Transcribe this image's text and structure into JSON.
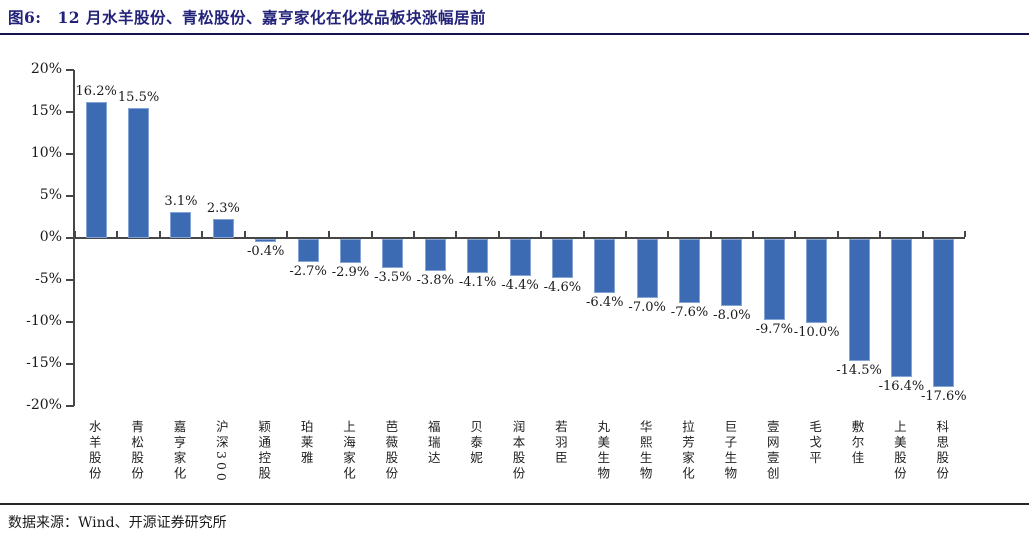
{
  "figure": {
    "label": "图6:",
    "title": "12 月水羊股份、青松股份、嘉亨家化在化妆品板块涨幅居前"
  },
  "footer": {
    "source": "数据来源：Wind、开源证券研究所"
  },
  "colors": {
    "bar": "#3C6BB3",
    "bar_border": "#85A4D6",
    "axis": "#474747",
    "text": "#1a1a1a",
    "title": "#23237A"
  },
  "chart_data": {
    "type": "bar",
    "title": "12 月水羊股份、青松股份、嘉亨家化在化妆品板块涨幅居前",
    "categories": [
      "水羊股份",
      "青松股份",
      "嘉亨家化",
      "沪深300",
      "颖通控股",
      "珀莱雅",
      "上海家化",
      "芭薇股份",
      "福瑞达",
      "贝泰妮",
      "润本股份",
      "若羽臣",
      "丸美生物",
      "华熙生物",
      "拉芳家化",
      "巨子生物",
      "壹网壹创",
      "毛戈平",
      "敷尔佳",
      "上美股份",
      "科思股份"
    ],
    "values": [
      16.2,
      15.5,
      3.1,
      2.3,
      -0.4,
      -2.7,
      -2.9,
      -3.5,
      -3.8,
      -4.1,
      -4.4,
      -4.6,
      -6.4,
      -7.0,
      -7.6,
      -8.0,
      -9.7,
      -10.0,
      -14.5,
      -16.4,
      -17.6
    ],
    "value_labels": [
      "16.2%",
      "15.5%",
      "3.1%",
      "2.3%",
      "-0.4%",
      "-2.7%",
      "-2.9%",
      "-3.5%",
      "-3.8%",
      "-4.1%",
      "-4.4%",
      "-4.6%",
      "-6.4%",
      "-7.0%",
      "-7.6%",
      "-8.0%",
      "-9.7%",
      "-10.0%",
      "-14.5%",
      "-16.4%",
      "-17.6%"
    ],
    "xlabel": "",
    "ylabel": "",
    "ylim": [
      -20,
      20
    ],
    "yticks": [
      20,
      15,
      10,
      5,
      0,
      -5,
      -10,
      -15,
      -20
    ],
    "ytick_labels": [
      "20%",
      "15%",
      "10%",
      "5%",
      "0%",
      "-5%",
      "-10%",
      "-15%",
      "-20%"
    ],
    "grid": false,
    "legend": false,
    "bar_color": "#3C6BB3",
    "source": "数据来源：Wind、开源证券研究所"
  }
}
